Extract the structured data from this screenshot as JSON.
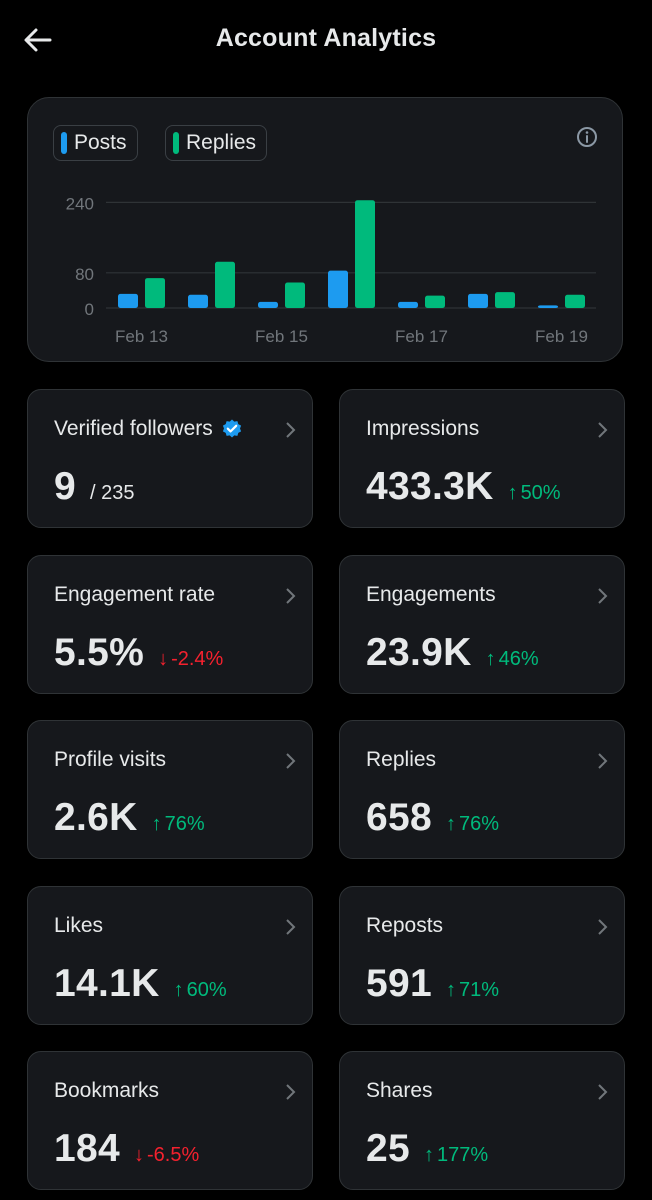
{
  "header": {
    "title": "Account Analytics",
    "back_icon": "arrow-left-icon"
  },
  "colors": {
    "posts": "#1d9bf0",
    "replies": "#00ba7c",
    "up": "#00ba7c",
    "down": "#f4212e",
    "verified": "#1d9bf0"
  },
  "chart_data": {
    "type": "bar",
    "categories": [
      "Feb 13",
      "Feb 14",
      "Feb 15",
      "Feb 16",
      "Feb 17",
      "Feb 18",
      "Feb 19"
    ],
    "x_tick_labels": [
      "Feb 13",
      "Feb 15",
      "Feb 17",
      "Feb 19"
    ],
    "y_tick_labels": [
      "0",
      "80",
      "240"
    ],
    "y_ticks": [
      0,
      80,
      240
    ],
    "ylim": [
      0,
      250
    ],
    "series": [
      {
        "name": "Posts",
        "values": [
          32,
          30,
          14,
          85,
          14,
          32,
          6
        ]
      },
      {
        "name": "Replies",
        "values": [
          68,
          105,
          58,
          245,
          28,
          36,
          30
        ]
      }
    ],
    "legend": [
      "Posts",
      "Replies"
    ],
    "legend_position": "top-left"
  },
  "metrics": [
    {
      "label": "Verified followers",
      "value": "9",
      "total": "/ 235",
      "verified": true
    },
    {
      "label": "Impressions",
      "value": "433.3K",
      "direction": "up",
      "arrow": "↑",
      "change": "50%"
    },
    {
      "label": "Engagement rate",
      "value": "5.5%",
      "direction": "down",
      "arrow": "↓",
      "change": "-2.4%"
    },
    {
      "label": "Engagements",
      "value": "23.9K",
      "direction": "up",
      "arrow": "↑",
      "change": "46%"
    },
    {
      "label": "Profile visits",
      "value": "2.6K",
      "direction": "up",
      "arrow": "↑",
      "change": "76%"
    },
    {
      "label": "Replies",
      "value": "658",
      "direction": "up",
      "arrow": "↑",
      "change": "76%"
    },
    {
      "label": "Likes",
      "value": "14.1K",
      "direction": "up",
      "arrow": "↑",
      "change": "60%"
    },
    {
      "label": "Reposts",
      "value": "591",
      "direction": "up",
      "arrow": "↑",
      "change": "71%"
    },
    {
      "label": "Bookmarks",
      "value": "184",
      "direction": "down",
      "arrow": "↓",
      "change": "-6.5%"
    },
    {
      "label": "Shares",
      "value": "25",
      "direction": "up",
      "arrow": "↑",
      "change": "177%"
    }
  ]
}
